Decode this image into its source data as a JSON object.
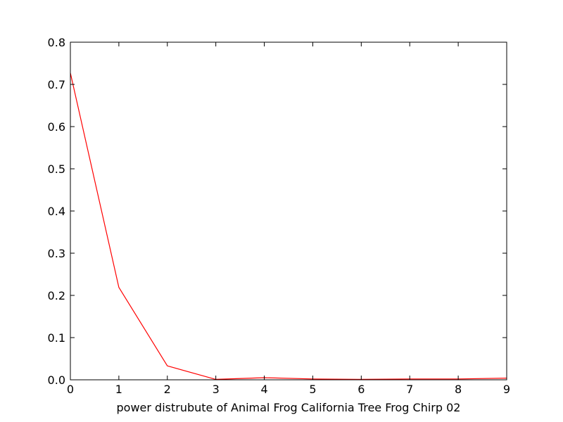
{
  "chart_data": {
    "type": "line",
    "title": "",
    "xlabel": "power distrubute of Animal Frog California Tree Frog Chirp 02",
    "ylabel": "",
    "xlim": [
      0,
      9
    ],
    "ylim": [
      0.0,
      0.8
    ],
    "xticks": [
      "0",
      "1",
      "2",
      "3",
      "4",
      "5",
      "6",
      "7",
      "8",
      "9"
    ],
    "yticks": [
      "0.0",
      "0.1",
      "0.2",
      "0.3",
      "0.4",
      "0.5",
      "0.6",
      "0.7",
      "0.8"
    ],
    "grid": false,
    "legend": "none",
    "series": [
      {
        "color": "#ff0000",
        "x": [
          0,
          1,
          2,
          3,
          4,
          5,
          6,
          7,
          8,
          9
        ],
        "y": [
          0.727,
          0.219,
          0.033,
          0.001,
          0.005,
          0.002,
          0.001,
          0.002,
          0.002,
          0.004
        ]
      }
    ]
  }
}
